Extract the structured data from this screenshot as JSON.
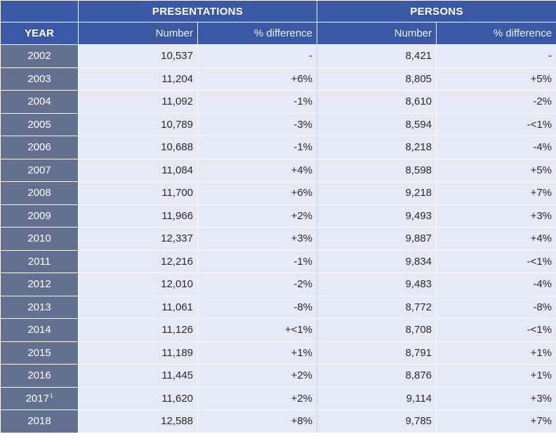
{
  "table": {
    "groups": {
      "presentations": "PRESENTATIONS",
      "persons": "PERSONS"
    },
    "columns": {
      "year": "YEAR",
      "presentations_number": "Number",
      "presentations_diff": "% difference",
      "persons_number": "Number",
      "persons_diff": "% difference"
    },
    "rows": [
      {
        "year": "2002",
        "footnote": "",
        "p_num": "10,537",
        "p_diff": "-",
        "n_num": "8,421",
        "n_diff": "-"
      },
      {
        "year": "2003",
        "footnote": "",
        "p_num": "11,204",
        "p_diff": "+6%",
        "n_num": "8,805",
        "n_diff": "+5%"
      },
      {
        "year": "2004",
        "footnote": "",
        "p_num": "11,092",
        "p_diff": "-1%",
        "n_num": "8,610",
        "n_diff": "-2%"
      },
      {
        "year": "2005",
        "footnote": "",
        "p_num": "10,789",
        "p_diff": "-3%",
        "n_num": "8,594",
        "n_diff": "-<1%"
      },
      {
        "year": "2006",
        "footnote": "",
        "p_num": "10,688",
        "p_diff": "-1%",
        "n_num": "8,218",
        "n_diff": "-4%"
      },
      {
        "year": "2007",
        "footnote": "",
        "p_num": "11,084",
        "p_diff": "+4%",
        "n_num": "8,598",
        "n_diff": "+5%"
      },
      {
        "year": "2008",
        "footnote": "",
        "p_num": "11,700",
        "p_diff": "+6%",
        "n_num": "9,218",
        "n_diff": "+7%"
      },
      {
        "year": "2009",
        "footnote": "",
        "p_num": "11,966",
        "p_diff": "+2%",
        "n_num": "9,493",
        "n_diff": "+3%"
      },
      {
        "year": "2010",
        "footnote": "",
        "p_num": "12,337",
        "p_diff": "+3%",
        "n_num": "9,887",
        "n_diff": "+4%"
      },
      {
        "year": "2011",
        "footnote": "",
        "p_num": "12,216",
        "p_diff": "-1%",
        "n_num": "9,834",
        "n_diff": "-<1%"
      },
      {
        "year": "2012",
        "footnote": "",
        "p_num": "12,010",
        "p_diff": "-2%",
        "n_num": "9,483",
        "n_diff": "-4%"
      },
      {
        "year": "2013",
        "footnote": "",
        "p_num": "11,061",
        "p_diff": "-8%",
        "n_num": "8,772",
        "n_diff": "-8%"
      },
      {
        "year": "2014",
        "footnote": "",
        "p_num": "11,126",
        "p_diff": "+<1%",
        "n_num": "8,708",
        "n_diff": "-<1%"
      },
      {
        "year": "2015",
        "footnote": "",
        "p_num": "11,189",
        "p_diff": "+1%",
        "n_num": "8,791",
        "n_diff": "+1%"
      },
      {
        "year": "2016",
        "footnote": "",
        "p_num": "11,445",
        "p_diff": "+2%",
        "n_num": "8,876",
        "n_diff": "+1%"
      },
      {
        "year": "2017",
        "footnote": "1",
        "p_num": "11,620",
        "p_diff": "+2%",
        "n_num": "9,114",
        "n_diff": "+3%"
      },
      {
        "year": "2018",
        "footnote": "",
        "p_num": "12,588",
        "p_diff": "+8%",
        "n_num": "9,785",
        "n_diff": "+7%"
      }
    ]
  }
}
